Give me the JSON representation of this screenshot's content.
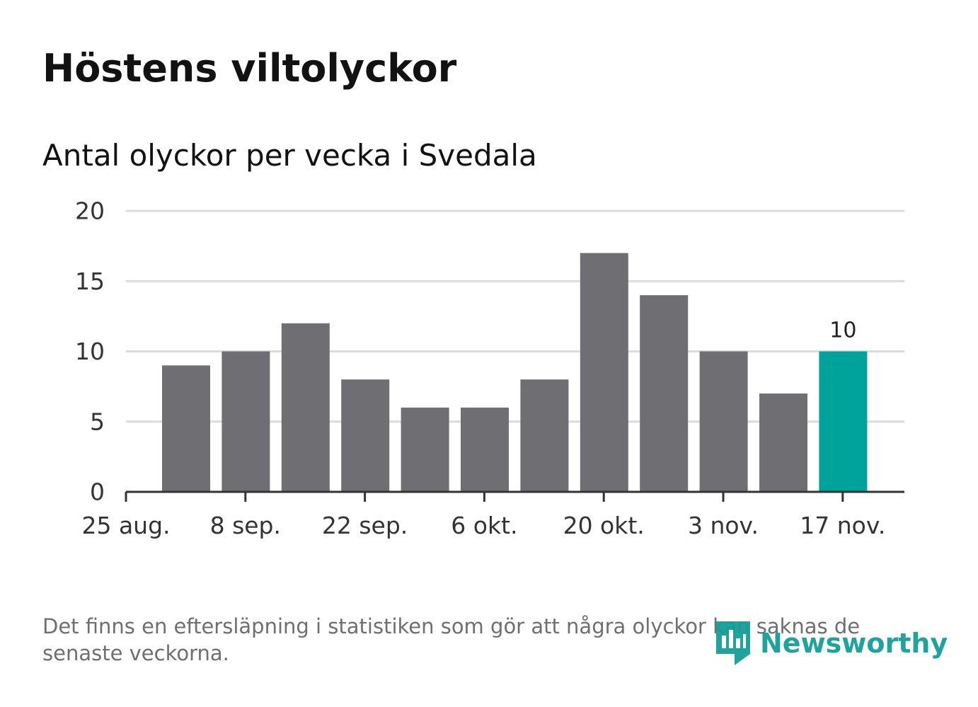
{
  "title": "Höstens viltolyckor",
  "subtitle": "Antal olyckor per vecka i Svedala",
  "footnote": "Det finns en eftersläpning i statistiken som gör att några olyckor kan saknas de senaste veckorna.",
  "brand": {
    "name": "Newsworthy",
    "icon": "newsworthy-logo-icon",
    "color": "#159e98"
  },
  "colors": {
    "bar": "#6f6e73",
    "highlight": "#00a39a",
    "grid": "#dcdcdc",
    "axis": "#333333"
  },
  "chart_data": {
    "type": "bar",
    "title": "Antal olyckor per vecka i Svedala",
    "xlabel": "",
    "ylabel": "",
    "ylim": [
      0,
      20
    ],
    "yticks": [
      0,
      5,
      10,
      15,
      20
    ],
    "grid": true,
    "x_tick_labels": [
      "25 aug.",
      "8 sep.",
      "22 sep.",
      "6 okt.",
      "20 okt.",
      "3 nov.",
      "17 nov."
    ],
    "values": [
      9,
      10,
      12,
      8,
      6,
      6,
      8,
      17,
      14,
      10,
      7,
      10
    ],
    "highlight_index": 11,
    "data_labels": [
      {
        "index": 11,
        "text": "10"
      }
    ]
  }
}
